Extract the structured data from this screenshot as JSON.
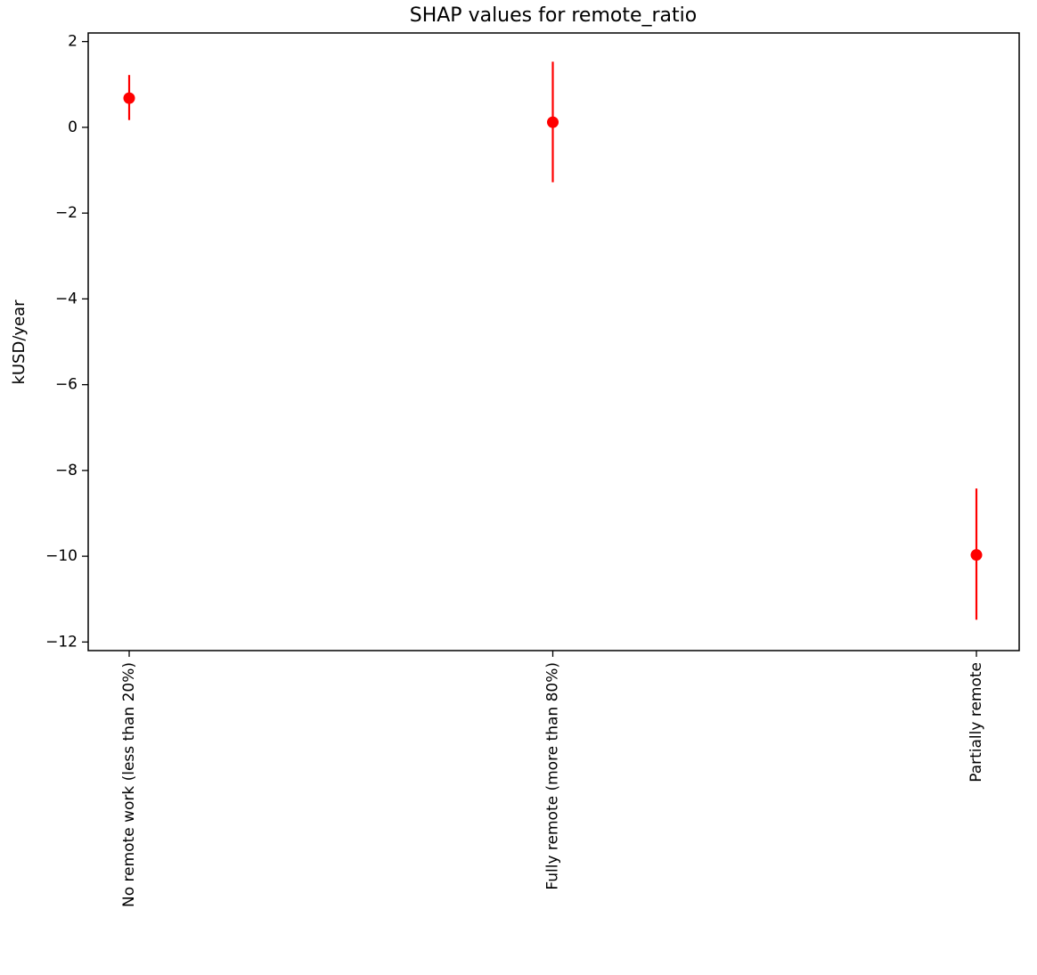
{
  "chart_data": {
    "type": "scatter",
    "title": "SHAP values for remote_ratio",
    "xlabel": "",
    "ylabel": "kUSD/year",
    "categories": [
      "No remote work (less than 20%)",
      "Fully remote (more than 80%)",
      "Partially remote"
    ],
    "series": [
      {
        "values": [
          0.68,
          0.12,
          -9.97
        ],
        "error_low": [
          0.17,
          -1.28,
          -11.48
        ],
        "error_high": [
          1.22,
          1.53,
          -8.42
        ]
      }
    ],
    "ylim": [
      -12.2,
      2.2
    ],
    "yticks": [
      2,
      0,
      -2,
      -4,
      -6,
      -8,
      -10,
      -12
    ],
    "ytick_labels": [
      "2",
      "0",
      "−2",
      "−4",
      "−6",
      "−8",
      "−10",
      "−12"
    ],
    "grid": false,
    "marker_color": "#ff0000",
    "errorbar_color": "#ff0000"
  }
}
